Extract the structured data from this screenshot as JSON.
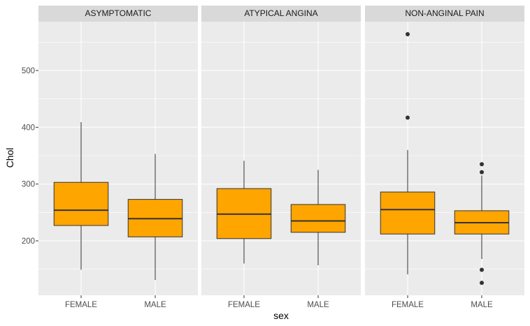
{
  "chart_data": {
    "type": "boxplot",
    "title": "",
    "xlabel": "sex",
    "ylabel": "Chol",
    "ylim": [
      120,
      575
    ],
    "yticks": [
      200,
      300,
      400,
      500
    ],
    "categories": [
      "FEMALE",
      "MALE"
    ],
    "fill_color": "#ffa500",
    "panel_bg": "#ebebeb",
    "strip_bg": "#d9d9d9",
    "panels": [
      {
        "label": "ASYMPTOMATIC",
        "boxes": [
          {
            "category": "FEMALE",
            "lower_whisker": 149,
            "q1": 227,
            "median": 254,
            "q3": 303,
            "upper_whisker": 409,
            "outliers": []
          },
          {
            "category": "MALE",
            "lower_whisker": 131,
            "q1": 207,
            "median": 239,
            "q3": 273,
            "upper_whisker": 353,
            "outliers": []
          }
        ]
      },
      {
        "label": "ATYPICAL ANGINA",
        "boxes": [
          {
            "category": "FEMALE",
            "lower_whisker": 160,
            "q1": 204,
            "median": 247,
            "q3": 292,
            "upper_whisker": 341,
            "outliers": []
          },
          {
            "category": "MALE",
            "lower_whisker": 157,
            "q1": 215,
            "median": 235,
            "q3": 264,
            "upper_whisker": 325,
            "outliers": []
          }
        ]
      },
      {
        "label": "NON-ANGINAL PAIN",
        "boxes": [
          {
            "category": "FEMALE",
            "lower_whisker": 141,
            "q1": 212,
            "median": 255,
            "q3": 286,
            "upper_whisker": 360,
            "outliers": [
              417,
              564
            ]
          },
          {
            "category": "MALE",
            "lower_whisker": 168,
            "q1": 212,
            "median": 232,
            "q3": 253,
            "upper_whisker": 315,
            "outliers": [
              321,
              335,
              149,
              126
            ]
          }
        ]
      }
    ]
  }
}
